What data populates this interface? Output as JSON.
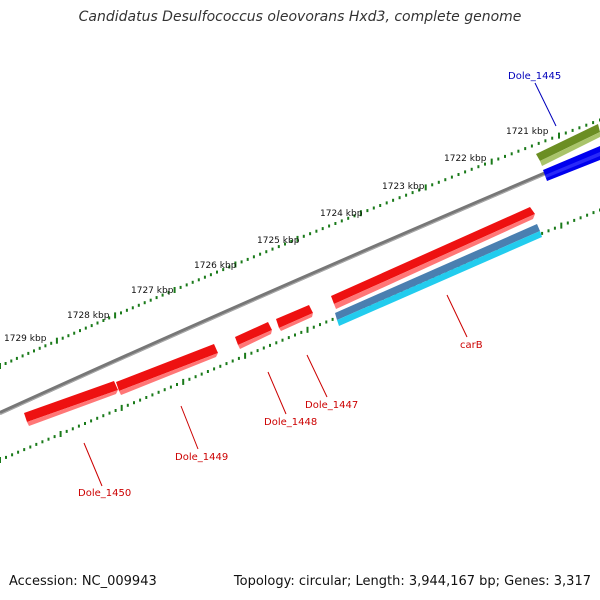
{
  "title": "Candidatus Desulfococcus oleovorans Hxd3, complete genome",
  "footer": {
    "accession": "Accession: NC_009943",
    "topology": "Topology: circular; Length: 3,944,167 bp; Genes: 3,317"
  },
  "colors": {
    "backbone": "#777777",
    "ticks": "#1a7a1a",
    "red_gene": "#ee1111",
    "blue_gene": "#0000ee",
    "olive_gene": "#6b8e23",
    "cds_steel": "#4a7fb0",
    "cds_cyan": "#22ccee",
    "red_label": "#cc0000",
    "blue_label": "#0000bb"
  },
  "scale": {
    "ticks": [
      {
        "label": "1721 kbp"
      },
      {
        "label": "1722 kbp"
      },
      {
        "label": "1723 kbp"
      },
      {
        "label": "1724 kbp"
      },
      {
        "label": "1725 kbp"
      },
      {
        "label": "1726 kbp"
      },
      {
        "label": "1727 kbp"
      },
      {
        "label": "1728 kbp"
      },
      {
        "label": "1729 kbp"
      }
    ]
  },
  "genes": [
    {
      "name": "Dole_1445",
      "color": "blue"
    },
    {
      "name": "carB",
      "color": "red"
    },
    {
      "name": "Dole_1447",
      "color": "red"
    },
    {
      "name": "Dole_1448",
      "color": "red"
    },
    {
      "name": "Dole_1449",
      "color": "red"
    },
    {
      "name": "Dole_1450",
      "color": "red"
    }
  ]
}
